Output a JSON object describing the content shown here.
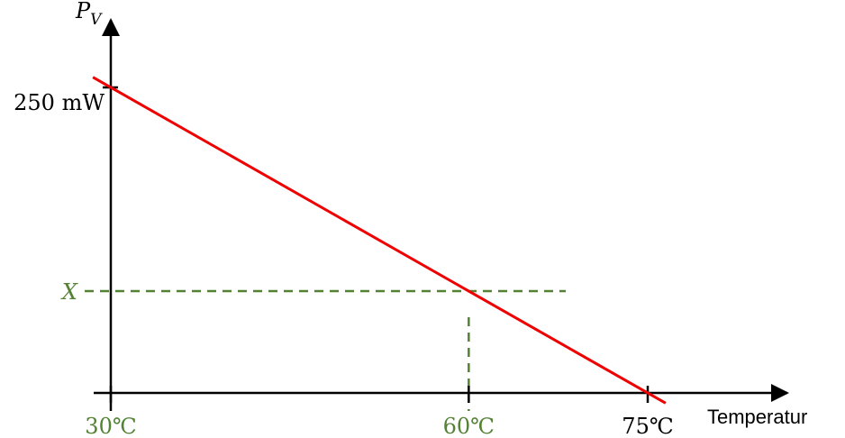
{
  "chart_data": {
    "type": "line",
    "title": "",
    "ylabel": "P",
    "ylabel_sub": "V",
    "xlabel": "Temperatur",
    "x_ticks": [
      {
        "value": 30,
        "label": "30℃",
        "color": "#548235"
      },
      {
        "value": 60,
        "label": "60℃",
        "color": "#548235"
      },
      {
        "value": 75,
        "label": "75℃",
        "color": "#000000"
      }
    ],
    "y_ticks": [
      {
        "value": 250,
        "label": "250 mW",
        "color": "#000000"
      }
    ],
    "series": [
      {
        "color": "#ee0000",
        "x": [
          30,
          75
        ],
        "y": [
          250,
          0
        ]
      }
    ],
    "annotations": [
      {
        "type": "reference-point",
        "x": 60,
        "label": "X",
        "color": "#548235",
        "style": "dashed"
      }
    ],
    "xlim": [
      30,
      75
    ],
    "ylim": [
      0,
      250
    ],
    "grid": false
  }
}
